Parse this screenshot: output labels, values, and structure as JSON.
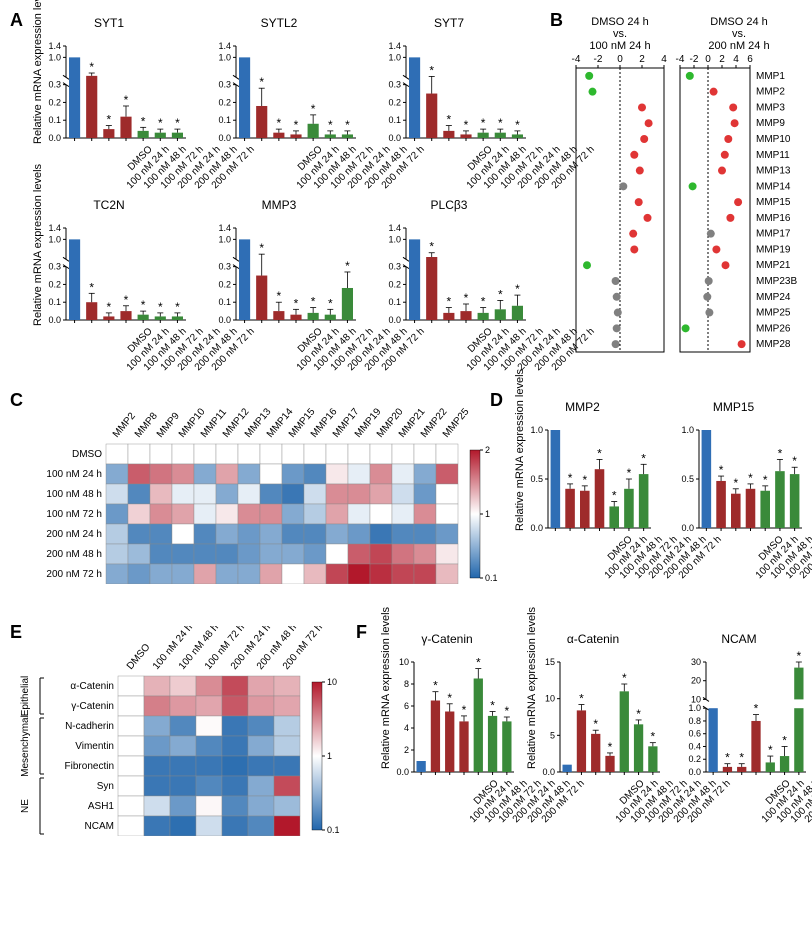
{
  "colors": {
    "blue": "#2f6eb5",
    "darkred": "#9e2b2b",
    "green": "#3a8a3a",
    "red_dot": "#e03535",
    "green_dot": "#2eb82e",
    "gray_dot": "#808080",
    "axis": "#000000",
    "heat_low": "#2166ac",
    "heat_mid": "#ffffff",
    "heat_high": "#b2182b"
  },
  "panelA": {
    "ylabel": "Relative mRNA expression levels",
    "xlabels": [
      "DMSO",
      "100 nM 24 h",
      "100 nM 48 h",
      "100 nM 72 h",
      "200 nM 24 h",
      "200 nM 48 h",
      "200 nM 72 h"
    ],
    "charts": [
      {
        "title": "SYT1",
        "ymax": 1.4,
        "break": true,
        "bars": [
          1.0,
          0.35,
          0.05,
          0.12,
          0.04,
          0.03,
          0.03
        ],
        "err": [
          0,
          0.1,
          0.02,
          0.06,
          0.02,
          0.02,
          0.02
        ],
        "sig": [
          0,
          1,
          1,
          1,
          1,
          1,
          1
        ]
      },
      {
        "title": "SYTL2",
        "ymax": 1.4,
        "break": true,
        "bars": [
          1.0,
          0.18,
          0.03,
          0.02,
          0.08,
          0.02,
          0.02
        ],
        "err": [
          0,
          0.1,
          0.02,
          0.02,
          0.05,
          0.02,
          0.02
        ],
        "sig": [
          0,
          1,
          1,
          1,
          1,
          1,
          1
        ]
      },
      {
        "title": "SYT7",
        "ymax": 1.4,
        "break": true,
        "bars": [
          1.0,
          0.25,
          0.04,
          0.02,
          0.03,
          0.03,
          0.02
        ],
        "err": [
          0,
          0.08,
          0.03,
          0.02,
          0.02,
          0.02,
          0.02
        ],
        "sig": [
          0,
          1,
          1,
          1,
          1,
          1,
          1
        ]
      },
      {
        "title": "TC2N",
        "ymax": 1.4,
        "break": true,
        "bars": [
          1.0,
          0.1,
          0.02,
          0.05,
          0.03,
          0.02,
          0.02
        ],
        "err": [
          0,
          0.05,
          0.02,
          0.03,
          0.02,
          0.02,
          0.02
        ],
        "sig": [
          0,
          1,
          1,
          1,
          1,
          1,
          1
        ]
      },
      {
        "title": "MMP3",
        "ymax": 1.4,
        "break": true,
        "bars": [
          1.0,
          0.25,
          0.05,
          0.03,
          0.04,
          0.03,
          0.18
        ],
        "err": [
          0,
          0.23,
          0.05,
          0.03,
          0.03,
          0.03,
          0.09
        ],
        "sig": [
          0,
          1,
          1,
          1,
          1,
          1,
          1
        ]
      },
      {
        "title": "PLCβ3",
        "ymax": 1.4,
        "break": true,
        "bars": [
          1.0,
          0.38,
          0.04,
          0.05,
          0.04,
          0.06,
          0.08
        ],
        "err": [
          0,
          0.15,
          0.03,
          0.04,
          0.03,
          0.05,
          0.06
        ],
        "sig": [
          0,
          1,
          1,
          1,
          1,
          1,
          1
        ]
      }
    ]
  },
  "panelB": {
    "titles": [
      "DMSO 24 h\nvs.\n100 nM 24 h",
      "DMSO 24 h\nvs.\n200 nM 24 h"
    ],
    "xrange1": [
      -4,
      4
    ],
    "xticks1": [
      -4,
      -2,
      0,
      2,
      4
    ],
    "xrange2": [
      -4,
      6
    ],
    "xticks2": [
      -4,
      -2,
      0,
      2,
      4,
      6
    ],
    "genes": [
      "MMP1",
      "MMP2",
      "MMP3",
      "MMP9",
      "MMP10",
      "MMP11",
      "MMP13",
      "MMP14",
      "MMP15",
      "MMP16",
      "MMP17",
      "MMP19",
      "MMP21",
      "MMP23B",
      "MMP24",
      "MMP25",
      "MMP26",
      "MMP28"
    ],
    "set1": [
      {
        "v": -2.8,
        "c": "green"
      },
      {
        "v": -2.5,
        "c": "green"
      },
      {
        "v": 2.0,
        "c": "red"
      },
      {
        "v": 2.6,
        "c": "red"
      },
      {
        "v": 2.2,
        "c": "red"
      },
      {
        "v": 1.3,
        "c": "red"
      },
      {
        "v": 1.8,
        "c": "red"
      },
      {
        "v": 0.3,
        "c": "gray"
      },
      {
        "v": 1.7,
        "c": "red"
      },
      {
        "v": 2.5,
        "c": "red"
      },
      {
        "v": 1.2,
        "c": "red"
      },
      {
        "v": 1.3,
        "c": "red"
      },
      {
        "v": -3.0,
        "c": "green"
      },
      {
        "v": -0.4,
        "c": "gray"
      },
      {
        "v": -0.3,
        "c": "gray"
      },
      {
        "v": -0.2,
        "c": "gray"
      },
      {
        "v": -0.3,
        "c": "gray"
      },
      {
        "v": -0.4,
        "c": "gray"
      }
    ],
    "set2": [
      {
        "v": -2.6,
        "c": "green"
      },
      {
        "v": 0.8,
        "c": "red"
      },
      {
        "v": 3.6,
        "c": "red"
      },
      {
        "v": 3.8,
        "c": "red"
      },
      {
        "v": 2.9,
        "c": "red"
      },
      {
        "v": 2.4,
        "c": "red"
      },
      {
        "v": 2.0,
        "c": "red"
      },
      {
        "v": -2.2,
        "c": "green"
      },
      {
        "v": 4.3,
        "c": "red"
      },
      {
        "v": 3.2,
        "c": "red"
      },
      {
        "v": 0.4,
        "c": "gray"
      },
      {
        "v": 1.2,
        "c": "red"
      },
      {
        "v": 2.5,
        "c": "red"
      },
      {
        "v": 0.1,
        "c": "gray"
      },
      {
        "v": -0.1,
        "c": "gray"
      },
      {
        "v": 0.2,
        "c": "gray"
      },
      {
        "v": -3.2,
        "c": "green"
      },
      {
        "v": 4.8,
        "c": "red"
      }
    ]
  },
  "panelC": {
    "cols": [
      "MMP2",
      "MMP8",
      "MMP9",
      "MMP10",
      "MMP11",
      "MMP12",
      "MMP13",
      "MMP14",
      "MMP15",
      "MMP16",
      "MMP17",
      "MMP19",
      "MMP20",
      "MMP21",
      "MMP22",
      "MMP25"
    ],
    "rows": [
      "DMSO",
      "100 nM 24 h",
      "100 nM 48 h",
      "100 nM 72 h",
      "200 nM 24 h",
      "200 nM 48 h",
      "200 nM 72 h"
    ],
    "scale": {
      "min": 0.1,
      "mid": 1.0,
      "max": 2.0
    },
    "data": [
      [
        1.0,
        1.0,
        1.0,
        1.0,
        1.0,
        1.0,
        1.0,
        1.0,
        1.0,
        1.0,
        1.0,
        1.0,
        1.0,
        1.0,
        1.0,
        1.0
      ],
      [
        0.5,
        1.7,
        1.6,
        1.5,
        0.5,
        1.4,
        0.5,
        1.0,
        0.4,
        0.3,
        1.1,
        0.9,
        1.5,
        0.9,
        0.5,
        1.7
      ],
      [
        0.8,
        0.3,
        1.3,
        0.9,
        0.9,
        0.5,
        0.9,
        0.3,
        0.2,
        0.8,
        1.5,
        1.5,
        1.4,
        0.8,
        0.4,
        1.0
      ],
      [
        0.4,
        1.2,
        1.5,
        1.4,
        0.9,
        1.1,
        1.5,
        1.5,
        0.5,
        0.7,
        1.4,
        0.9,
        1.0,
        0.9,
        1.5,
        1.0
      ],
      [
        0.7,
        0.3,
        0.3,
        1.0,
        0.3,
        0.5,
        0.4,
        0.5,
        0.3,
        0.3,
        0.5,
        0.4,
        0.2,
        0.3,
        0.3,
        0.4
      ],
      [
        0.7,
        0.6,
        0.3,
        0.3,
        0.3,
        0.3,
        0.4,
        0.5,
        0.5,
        0.4,
        1.0,
        1.7,
        1.8,
        1.6,
        1.5,
        1.1
      ],
      [
        0.5,
        0.4,
        0.5,
        0.5,
        1.4,
        0.5,
        0.5,
        1.4,
        1.0,
        1.3,
        1.8,
        2.0,
        1.9,
        1.8,
        1.8,
        1.3
      ]
    ]
  },
  "panelD": {
    "ylabel": "Relative mRNA expression levels",
    "xlabels": [
      "DMSO",
      "100 nM 24 h",
      "100 nM 48 h",
      "100 nM 72 h",
      "200 nM 24 h",
      "200 nM 48 h",
      "200 nM 72 h"
    ],
    "charts": [
      {
        "title": "MMP2",
        "ymax": 1.0,
        "bars": [
          1.0,
          0.4,
          0.38,
          0.6,
          0.22,
          0.4,
          0.55
        ],
        "err": [
          0,
          0.05,
          0.05,
          0.1,
          0.05,
          0.1,
          0.1
        ],
        "sig": [
          0,
          1,
          1,
          1,
          1,
          1,
          1
        ]
      },
      {
        "title": "MMP15",
        "ymax": 1.0,
        "bars": [
          1.0,
          0.48,
          0.35,
          0.4,
          0.38,
          0.58,
          0.55
        ],
        "err": [
          0,
          0.05,
          0.05,
          0.05,
          0.05,
          0.12,
          0.07
        ],
        "sig": [
          0,
          1,
          1,
          1,
          1,
          1,
          1
        ]
      }
    ]
  },
  "panelE": {
    "cols": [
      "DMSO",
      "100 nM 24 h",
      "100 nM 48 h",
      "100 nM 72 h",
      "200 nM 24 h",
      "200 nM 48 h",
      "200 nM 72 h"
    ],
    "cats": [
      {
        "name": "Epithelial",
        "rows": [
          "α-Catenin",
          "γ-Catenin"
        ]
      },
      {
        "name": "Mesenchymal",
        "rows": [
          "N-cadherin",
          "Vimentin",
          "Fibronectin"
        ]
      },
      {
        "name": "NE",
        "rows": [
          "Syn",
          "ASH1",
          "NCAM"
        ]
      }
    ],
    "rows": [
      "α-Catenin",
      "γ-Catenin",
      "N-cadherin",
      "Vimentin",
      "Fibronectin",
      "Syn",
      "ASH1",
      "NCAM"
    ],
    "scale": {
      "min": 0.1,
      "mid": 1.0,
      "max": 10
    },
    "data": [
      [
        1.0,
        4.0,
        3.0,
        5.5,
        8.0,
        4.5,
        4.0
      ],
      [
        1.0,
        6.0,
        5.0,
        4.5,
        7.5,
        5.0,
        4.5
      ],
      [
        1.0,
        0.5,
        0.3,
        1.2,
        0.2,
        0.3,
        0.7
      ],
      [
        1.0,
        0.4,
        0.5,
        0.3,
        0.2,
        0.5,
        0.7
      ],
      [
        1.0,
        0.2,
        0.2,
        0.2,
        0.15,
        0.2,
        0.2
      ],
      [
        1.0,
        0.2,
        0.2,
        0.3,
        0.2,
        0.5,
        8.0
      ],
      [
        1.0,
        0.8,
        0.4,
        1.3,
        0.3,
        0.5,
        0.6
      ],
      [
        1.0,
        0.2,
        0.15,
        0.8,
        0.2,
        0.3,
        10.0
      ]
    ]
  },
  "panelF": {
    "ylabel": "Relative mRNA expression levels",
    "xlabels": [
      "DMSO",
      "100 nM 24 h",
      "100 nM 48 h",
      "100 nM 72 h",
      "200 nM 24 h",
      "200 nM 48 h",
      "200 nM 72 h"
    ],
    "charts": [
      {
        "title": "γ-Catenin",
        "ymax": 10,
        "yticks": [
          0,
          2,
          4,
          6,
          8,
          10
        ],
        "bars": [
          1.0,
          6.5,
          5.5,
          4.6,
          8.5,
          5.1,
          4.6
        ],
        "err": [
          0,
          0.8,
          0.7,
          0.5,
          0.9,
          0.4,
          0.4
        ],
        "sig": [
          0,
          1,
          1,
          1,
          1,
          1,
          1
        ]
      },
      {
        "title": "α-Catenin",
        "ymax": 15,
        "yticks": [
          0,
          5,
          10,
          15
        ],
        "bars": [
          1.0,
          8.4,
          5.2,
          2.2,
          11,
          6.5,
          3.5
        ],
        "err": [
          0,
          0.8,
          0.5,
          0.4,
          1.0,
          0.6,
          0.5
        ],
        "sig": [
          0,
          1,
          1,
          1,
          1,
          1,
          1
        ]
      },
      {
        "title": "NCAM",
        "ymax": 30,
        "break": true,
        "breakAt": 1.0,
        "upperMin": 10,
        "yticks_low": [
          0,
          0.2,
          0.4,
          0.6,
          0.8,
          1.0
        ],
        "yticks_high": [
          10,
          20,
          30
        ],
        "bars": [
          1.0,
          0.08,
          0.08,
          0.8,
          0.15,
          0.25,
          27
        ],
        "err": [
          0,
          0.05,
          0.05,
          0.1,
          0.1,
          0.15,
          3
        ],
        "sig": [
          0,
          1,
          1,
          1,
          1,
          1,
          1
        ]
      }
    ]
  }
}
